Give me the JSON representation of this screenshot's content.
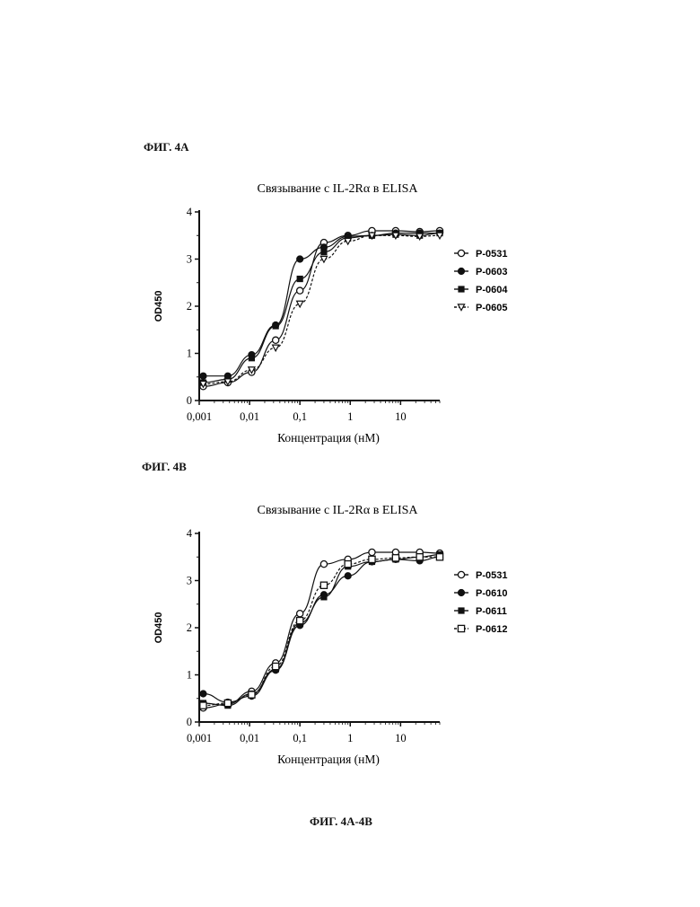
{
  "fig_a_label": "ФИГ. 4A",
  "fig_b_label": "ФИГ. 4B",
  "caption": "ФИГ. 4A-4B",
  "chart_data": [
    {
      "type": "scatter",
      "title": "Связывание с IL-2Rα в ELISA",
      "xlabel": "Концентрация (нМ)",
      "ylabel": "OD450",
      "xscale": "log",
      "xlim": [
        0.001,
        60
      ],
      "ylim": [
        0,
        4
      ],
      "xticks": [
        "0,001",
        "0,01",
        "0,1",
        "1",
        "10"
      ],
      "yticks": [
        "0",
        "1",
        "2",
        "3",
        "4"
      ],
      "legend": "right",
      "series": [
        {
          "name": "P-0531",
          "marker": "open-circle",
          "line": "solid",
          "x": [
            0.0012,
            0.0037,
            0.011,
            0.033,
            0.1,
            0.3,
            0.9,
            2.7,
            8,
            24,
            60
          ],
          "y": [
            0.3,
            0.38,
            0.6,
            1.28,
            2.33,
            3.35,
            3.5,
            3.6,
            3.6,
            3.58,
            3.6
          ]
        },
        {
          "name": "P-0603",
          "marker": "filled-circle",
          "line": "solid",
          "x": [
            0.0012,
            0.0037,
            0.011,
            0.033,
            0.1,
            0.3,
            0.9,
            2.7,
            8,
            24,
            60
          ],
          "y": [
            0.52,
            0.52,
            0.97,
            1.6,
            3.0,
            3.25,
            3.48,
            3.5,
            3.55,
            3.55,
            3.55
          ]
        },
        {
          "name": "P-0604",
          "marker": "filled-square",
          "line": "solid",
          "x": [
            0.0012,
            0.0037,
            0.011,
            0.033,
            0.1,
            0.3,
            0.9,
            2.7,
            8,
            24,
            60
          ],
          "y": [
            0.38,
            0.45,
            0.9,
            1.58,
            2.58,
            3.15,
            3.45,
            3.5,
            3.52,
            3.5,
            3.55
          ]
        },
        {
          "name": "P-0605",
          "marker": "open-triangle-down",
          "line": "dashed",
          "x": [
            0.0012,
            0.0037,
            0.011,
            0.033,
            0.1,
            0.3,
            0.9,
            2.7,
            8,
            24,
            60
          ],
          "y": [
            0.35,
            0.4,
            0.65,
            1.12,
            2.05,
            3.0,
            3.38,
            3.5,
            3.5,
            3.48,
            3.5
          ]
        }
      ]
    },
    {
      "type": "scatter",
      "title": "Связывание с IL-2Rα в ELISA",
      "xlabel": "Концентрация (нМ)",
      "ylabel": "OD450",
      "xscale": "log",
      "xlim": [
        0.001,
        60
      ],
      "ylim": [
        0,
        4
      ],
      "xticks": [
        "0,001",
        "0,01",
        "0,1",
        "1",
        "10"
      ],
      "yticks": [
        "0",
        "1",
        "2",
        "3",
        "4"
      ],
      "legend": "right",
      "series": [
        {
          "name": "P-0531",
          "marker": "open-circle",
          "line": "solid",
          "x": [
            0.0012,
            0.0037,
            0.011,
            0.033,
            0.1,
            0.3,
            0.9,
            2.7,
            8,
            24,
            60
          ],
          "y": [
            0.3,
            0.38,
            0.65,
            1.25,
            2.3,
            3.35,
            3.45,
            3.6,
            3.6,
            3.6,
            3.58
          ]
        },
        {
          "name": "P-0610",
          "marker": "filled-circle",
          "line": "solid",
          "x": [
            0.0012,
            0.0037,
            0.011,
            0.033,
            0.1,
            0.3,
            0.9,
            2.7,
            8,
            24,
            60
          ],
          "y": [
            0.6,
            0.42,
            0.55,
            1.1,
            2.05,
            2.7,
            3.1,
            3.4,
            3.45,
            3.42,
            3.5
          ]
        },
        {
          "name": "P-0611",
          "marker": "filled-square",
          "line": "solid",
          "x": [
            0.0012,
            0.0037,
            0.011,
            0.033,
            0.1,
            0.3,
            0.9,
            2.7,
            8,
            24,
            60
          ],
          "y": [
            0.4,
            0.35,
            0.6,
            1.12,
            2.1,
            2.65,
            3.3,
            3.4,
            3.45,
            3.5,
            3.55
          ]
        },
        {
          "name": "P-0612",
          "marker": "open-square",
          "line": "dashed",
          "x": [
            0.0012,
            0.0037,
            0.011,
            0.033,
            0.1,
            0.3,
            0.9,
            2.7,
            8,
            24,
            60
          ],
          "y": [
            0.35,
            0.4,
            0.58,
            1.18,
            2.15,
            2.9,
            3.35,
            3.45,
            3.48,
            3.5,
            3.5
          ]
        }
      ]
    }
  ]
}
